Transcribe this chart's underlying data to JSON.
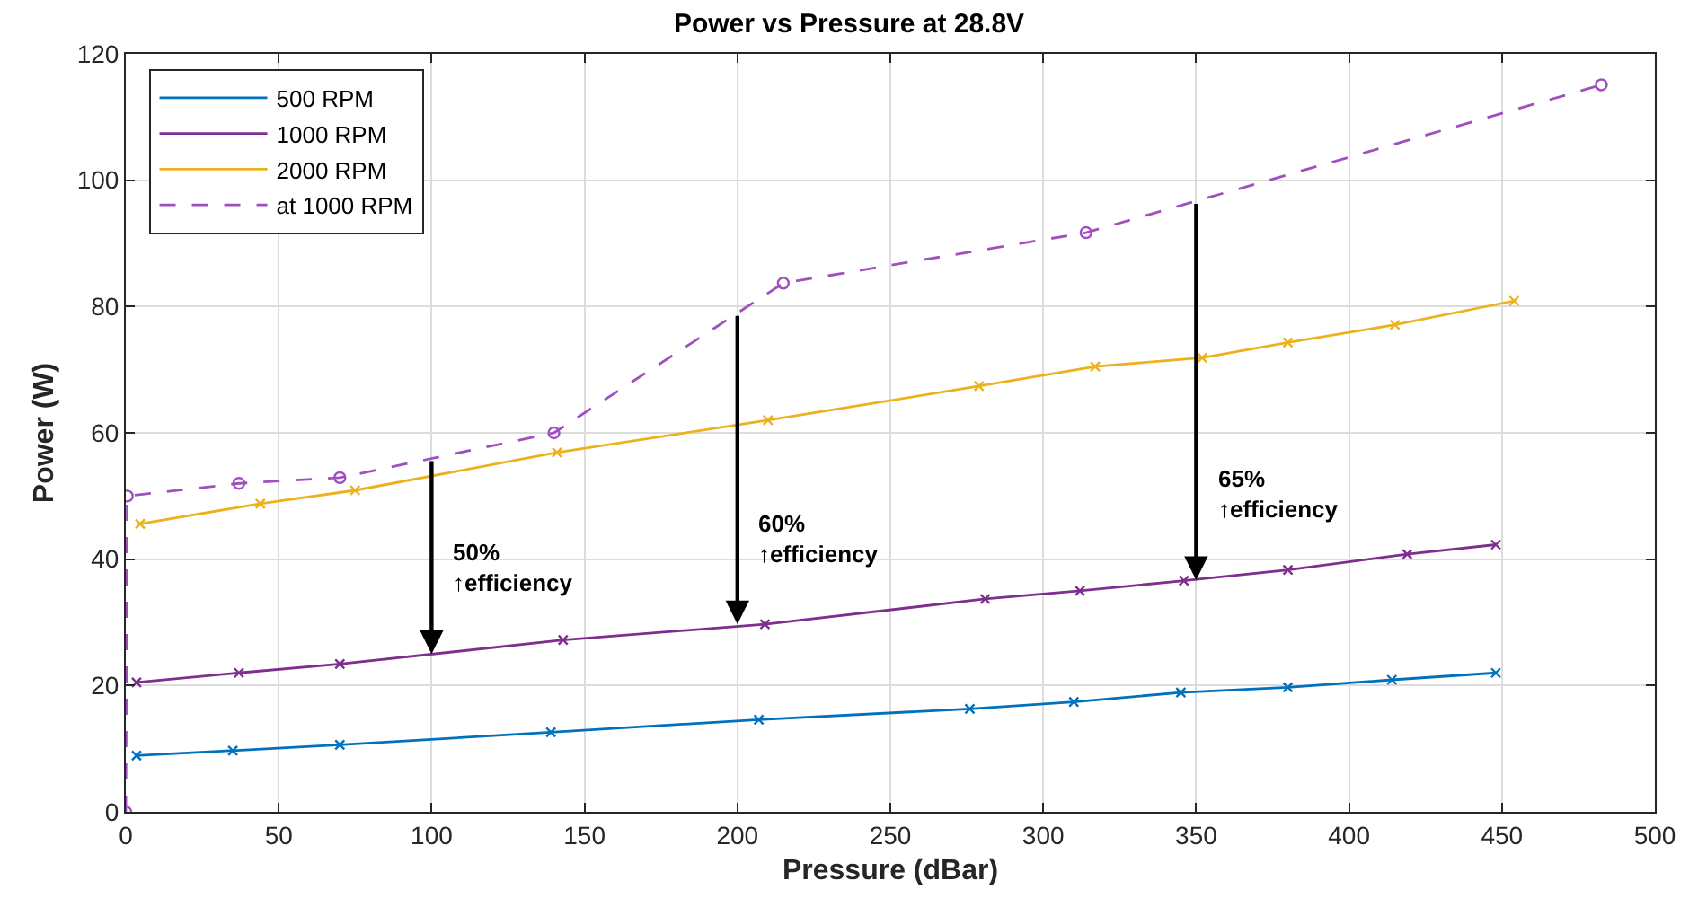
{
  "chart_data": {
    "type": "line",
    "title": "Power vs Pressure at 28.8V",
    "xlabel": "Pressure (dBar)",
    "ylabel": "Power (W)",
    "xlim": [
      0,
      500
    ],
    "xticks": [
      0,
      50,
      100,
      150,
      200,
      250,
      300,
      350,
      400,
      450,
      500
    ],
    "ylim": [
      0,
      120
    ],
    "yticks": [
      0,
      20,
      40,
      60,
      80,
      100,
      120
    ],
    "grid": true,
    "legend": "top left",
    "series": [
      {
        "name": "500 RPM",
        "color": "#0072bd",
        "marker": "cross",
        "line_style": "solid",
        "x": [
          3.5,
          35,
          70,
          139,
          207,
          276,
          310,
          345,
          380,
          414,
          448
        ],
        "values": [
          8.9,
          9.7,
          10.6,
          12.6,
          14.6,
          16.3,
          17.4,
          18.9,
          19.7,
          20.9,
          22.0
        ]
      },
      {
        "name": "1000 RPM",
        "color": "#7e2f8e",
        "marker": "cross",
        "line_style": "solid",
        "x": [
          3.5,
          37,
          70,
          143,
          209,
          281,
          312,
          346,
          380,
          419,
          448
        ],
        "values": [
          20.5,
          22,
          23.4,
          27.2,
          29.7,
          33.7,
          35,
          36.6,
          38.3,
          40.8,
          42.3
        ]
      },
      {
        "name": "2000 RPM",
        "color": "#edb120",
        "marker": "cross",
        "line_style": "solid",
        "x": [
          4.7,
          44,
          75,
          141,
          210,
          279,
          317,
          352,
          380,
          415,
          454
        ],
        "values": [
          45.6,
          48.8,
          50.9,
          56.9,
          62,
          67.4,
          70.5,
          71.9,
          74.3,
          77.1,
          80.9
        ]
      },
      {
        "name": "at 1000 RPM",
        "color": "#a04fbf",
        "marker": "circle",
        "line_style": "dashed",
        "x": [
          0,
          0.5,
          37,
          70,
          140,
          215,
          314,
          482.5
        ],
        "values": [
          0,
          50,
          52,
          52.9,
          60,
          83.7,
          91.7,
          115.1
        ]
      }
    ],
    "annotations": [
      {
        "text": "50%\n↑efficiency",
        "x": 100,
        "y": 25
      },
      {
        "text": "60%\n↑efficiency",
        "x": 200,
        "y": 29.7
      },
      {
        "text": "65%\n↑efficiency",
        "x": 350,
        "y": 36.7
      }
    ]
  }
}
